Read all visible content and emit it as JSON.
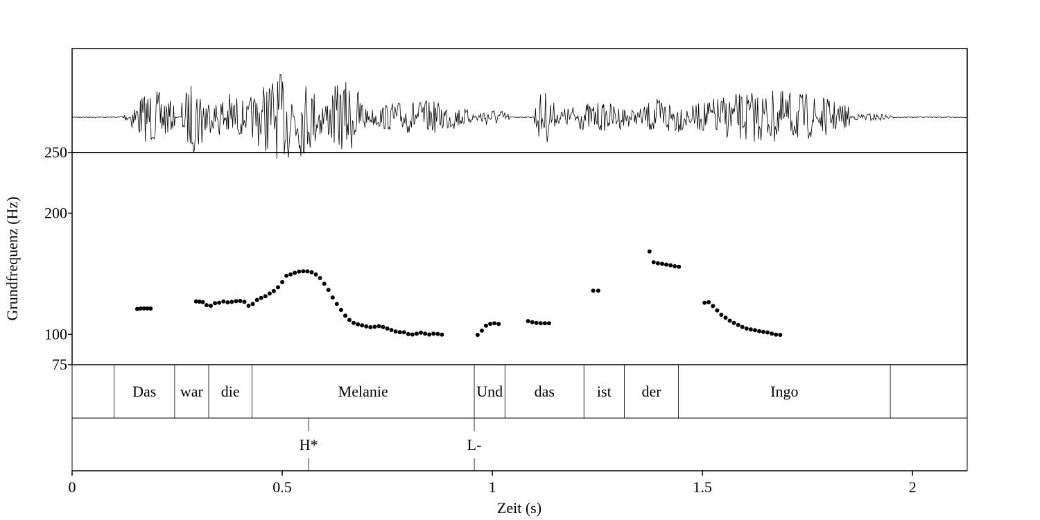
{
  "chart_data": {
    "type": "scatter",
    "xlabel": "Zeit (s)",
    "ylabel": "Grundfrequenz (Hz)",
    "xlim": [
      0,
      2.13
    ],
    "ylim": [
      75,
      250
    ],
    "x_ticks": [
      0,
      0.5,
      1,
      1.5,
      2
    ],
    "x_tick_labels": [
      "0",
      "0.5",
      "1",
      "1.5",
      "2"
    ],
    "y_ticks": [
      75,
      100,
      200,
      250
    ],
    "y_tick_labels": [
      "75",
      "100",
      "200",
      "250"
    ],
    "grid": false,
    "words": [
      {
        "label": "Das",
        "start": 0.1,
        "end": 0.244
      },
      {
        "label": "war",
        "start": 0.244,
        "end": 0.325
      },
      {
        "label": "die",
        "start": 0.325,
        "end": 0.428
      },
      {
        "label": "Melanie",
        "start": 0.428,
        "end": 0.957
      },
      {
        "label": "Und",
        "start": 0.957,
        "end": 1.03
      },
      {
        "label": "das",
        "start": 1.03,
        "end": 1.218
      },
      {
        "label": "ist",
        "start": 1.218,
        "end": 1.314
      },
      {
        "label": "der",
        "start": 1.314,
        "end": 1.443
      },
      {
        "label": "Ingo",
        "start": 1.443,
        "end": 1.947
      }
    ],
    "tones": [
      {
        "label": "H*",
        "time": 0.563
      },
      {
        "label": "L-",
        "time": 0.957
      }
    ],
    "pitch": [
      [
        0.155,
        121
      ],
      [
        0.163,
        121.3
      ],
      [
        0.171,
        121.4
      ],
      [
        0.179,
        121.4
      ],
      [
        0.187,
        121.3
      ],
      [
        0.295,
        127.2
      ],
      [
        0.303,
        127
      ],
      [
        0.311,
        126.6
      ],
      [
        0.32,
        124.1
      ],
      [
        0.33,
        123.6
      ],
      [
        0.34,
        125.7
      ],
      [
        0.35,
        126.1
      ],
      [
        0.36,
        127.2
      ],
      [
        0.37,
        126.4
      ],
      [
        0.38,
        126.8
      ],
      [
        0.39,
        127.4
      ],
      [
        0.4,
        127.6
      ],
      [
        0.41,
        126.8
      ],
      [
        0.42,
        123.6
      ],
      [
        0.43,
        125.1
      ],
      [
        0.44,
        128.4
      ],
      [
        0.45,
        130.1
      ],
      [
        0.46,
        131.5
      ],
      [
        0.47,
        133.7
      ],
      [
        0.48,
        135.8
      ],
      [
        0.49,
        138.8
      ],
      [
        0.5,
        143.1
      ],
      [
        0.51,
        148.4
      ],
      [
        0.52,
        149.5
      ],
      [
        0.53,
        150.8
      ],
      [
        0.54,
        151.8
      ],
      [
        0.55,
        152.1
      ],
      [
        0.56,
        152
      ],
      [
        0.57,
        151.3
      ],
      [
        0.58,
        149.4
      ],
      [
        0.59,
        146.5
      ],
      [
        0.6,
        141.8
      ],
      [
        0.61,
        136.7
      ],
      [
        0.62,
        130.4
      ],
      [
        0.63,
        125.1
      ],
      [
        0.64,
        120.2
      ],
      [
        0.65,
        115.5
      ],
      [
        0.66,
        111.9
      ],
      [
        0.67,
        109.4
      ],
      [
        0.68,
        108.3
      ],
      [
        0.69,
        107.5
      ],
      [
        0.7,
        106.6
      ],
      [
        0.71,
        105.9
      ],
      [
        0.72,
        106.2
      ],
      [
        0.73,
        106.8
      ],
      [
        0.74,
        106.1
      ],
      [
        0.75,
        104.8
      ],
      [
        0.76,
        103.6
      ],
      [
        0.77,
        102.4
      ],
      [
        0.78,
        101.8
      ],
      [
        0.79,
        101.7
      ],
      [
        0.8,
        100.2
      ],
      [
        0.81,
        99.9
      ],
      [
        0.82,
        100.6
      ],
      [
        0.83,
        101.4
      ],
      [
        0.84,
        100.6
      ],
      [
        0.85,
        99.9
      ],
      [
        0.86,
        100.6
      ],
      [
        0.87,
        100.4
      ],
      [
        0.88,
        99.8
      ],
      [
        0.965,
        99.6
      ],
      [
        0.975,
        103.1
      ],
      [
        0.985,
        107.2
      ],
      [
        0.995,
        108.7
      ],
      [
        1.005,
        109.2
      ],
      [
        1.015,
        108.6
      ],
      [
        1.085,
        111
      ],
      [
        1.095,
        110.1
      ],
      [
        1.105,
        109.4
      ],
      [
        1.115,
        109.2
      ],
      [
        1.125,
        109.2
      ],
      [
        1.135,
        109.2
      ],
      [
        1.24,
        136.1
      ],
      [
        1.252,
        136
      ],
      [
        1.374,
        168.4
      ],
      [
        1.384,
        159.5
      ],
      [
        1.394,
        158.6
      ],
      [
        1.404,
        158.2
      ],
      [
        1.414,
        157.6
      ],
      [
        1.424,
        157
      ],
      [
        1.434,
        156.2
      ],
      [
        1.444,
        155.8
      ],
      [
        1.505,
        126.1
      ],
      [
        1.515,
        126.5
      ],
      [
        1.525,
        123.4
      ],
      [
        1.535,
        119.7
      ],
      [
        1.545,
        116.2
      ],
      [
        1.555,
        113.8
      ],
      [
        1.565,
        111.3
      ],
      [
        1.575,
        109.4
      ],
      [
        1.585,
        107.7
      ],
      [
        1.595,
        106.1
      ],
      [
        1.605,
        104.8
      ],
      [
        1.615,
        104.1
      ],
      [
        1.625,
        103.4
      ],
      [
        1.635,
        102.7
      ],
      [
        1.645,
        102.1
      ],
      [
        1.655,
        101.6
      ],
      [
        1.665,
        100.6
      ],
      [
        1.675,
        99.8
      ],
      [
        1.685,
        99.6
      ]
    ]
  }
}
